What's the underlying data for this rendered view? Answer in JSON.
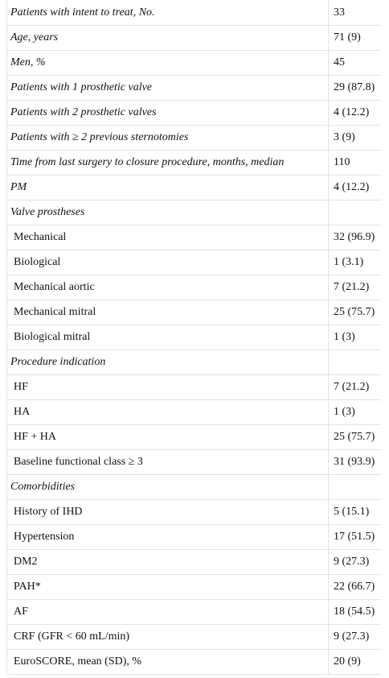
{
  "table": {
    "rows": [
      [
        "Patients with intent to treat, No.",
        "33"
      ],
      [
        "Age, years",
        "71 (9)"
      ],
      [
        "Men, %",
        "45"
      ],
      [
        "Patients with 1 prosthetic valve",
        "29 (87.8)"
      ],
      [
        "Patients with 2 prosthetic valves",
        "4 (12.2)"
      ],
      [
        "Patients with ≥ 2 previous sternotomies",
        "3 (9)"
      ],
      [
        "Time from last surgery to closure procedure, months, median",
        "110"
      ],
      [
        "PM",
        "4 (12.2)"
      ],
      [
        "Valve prostheses"
      ],
      [
        "Mechanical",
        "32 (96.9)"
      ],
      [
        "Biological",
        "1 (3.1)"
      ],
      [
        "Mechanical aortic",
        "7 (21.2)"
      ],
      [
        "Mechanical mitral",
        "25 (75.7)"
      ],
      [
        "Biological mitral",
        "1 (3)"
      ],
      [
        "Procedure indication"
      ],
      [
        "HF",
        "7 (21.2)"
      ],
      [
        "HA",
        "1 (3)"
      ],
      [
        "HF + HA",
        "25 (75.7)"
      ],
      [
        "Baseline functional class ≥ 3",
        "31 (93.9)"
      ],
      [
        "Comorbidities"
      ],
      [
        "History of IHD",
        "5 (15.1)"
      ],
      [
        "Hypertension",
        "17 (51.5)"
      ],
      [
        "DM2",
        "9 (27.3)"
      ],
      [
        "PAH*",
        "22 (66.7)"
      ],
      [
        "AF",
        "18 (54.5)"
      ],
      [
        "CRF (GFR < 60 mL/min)",
        "9 (27.3)"
      ],
      [
        "EuroSCORE, mean (SD), %",
        "20 (9)"
      ]
    ]
  }
}
